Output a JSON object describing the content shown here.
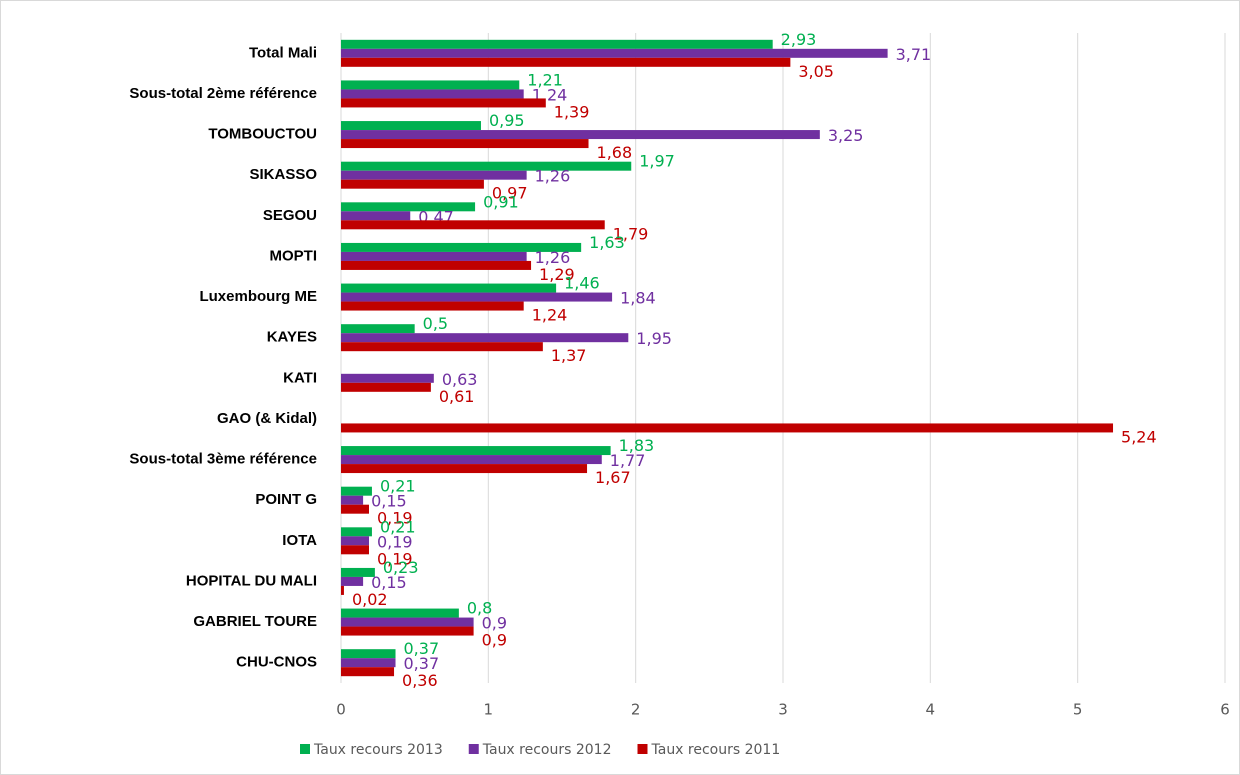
{
  "chart_data": {
    "type": "barh",
    "categories": [
      "Total Mali",
      "Sous-total 2ème référence",
      "TOMBOUCTOU",
      "SIKASSO",
      "SEGOU",
      "MOPTI",
      "Luxembourg ME",
      "KAYES",
      "KATI",
      "GAO (& Kidal)",
      "Sous-total 3ème référence",
      "POINT G",
      "IOTA",
      "HOPITAL DU MALI",
      "GABRIEL TOURE",
      "CHU-CNOS"
    ],
    "series": [
      {
        "name": "Taux recours 2013",
        "color": "#00b050",
        "values": [
          2.93,
          1.21,
          0.95,
          1.97,
          0.91,
          1.63,
          1.46,
          0.5,
          null,
          null,
          1.83,
          0.21,
          0.21,
          0.23,
          0.8,
          0.37
        ],
        "value_labels": [
          "2,93",
          "1,21",
          "0,95",
          "1,97",
          "0,91",
          "1,63",
          "1,46",
          "0,5",
          null,
          null,
          "1,83",
          "0,21",
          "0,21",
          "0,23",
          "0,8",
          "0,37"
        ]
      },
      {
        "name": "Taux recours 2012",
        "color": "#7030a0",
        "values": [
          3.71,
          1.24,
          3.25,
          1.26,
          0.47,
          1.26,
          1.84,
          1.95,
          0.63,
          null,
          1.77,
          0.15,
          0.19,
          0.15,
          0.9,
          0.37
        ],
        "value_labels": [
          "3,71",
          "1,24",
          "3,25",
          "1,26",
          "0,47",
          "1,26",
          "1,84",
          "1,95",
          "0,63",
          null,
          "1,77",
          "0,15",
          "0,19",
          "0,15",
          "0,9",
          "0,37"
        ]
      },
      {
        "name": "Taux recours 2011",
        "color": "#c00000",
        "values": [
          3.05,
          1.39,
          1.68,
          0.97,
          1.79,
          1.29,
          1.24,
          1.37,
          0.61,
          5.24,
          1.67,
          0.19,
          0.19,
          0.02,
          0.9,
          0.36
        ],
        "value_labels": [
          "3,05",
          "1,39",
          "1,68",
          "0,97",
          "1,79",
          "1,29",
          "1,24",
          "1,37",
          "0,61",
          "5,24",
          "1,67",
          "0,19",
          "0,19",
          "0,02",
          "0,9",
          "0,36"
        ]
      }
    ],
    "xlim": [
      0,
      6
    ],
    "xticks": [
      0,
      1,
      2,
      3,
      4,
      5,
      6
    ],
    "grid": true,
    "legend": "bottom"
  }
}
